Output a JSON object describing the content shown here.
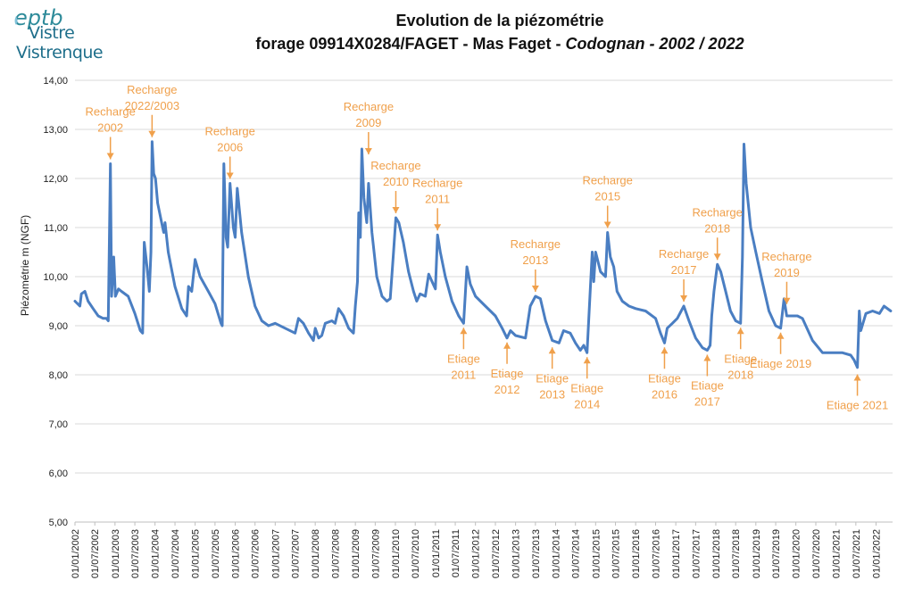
{
  "logo": {
    "mark_text": "eptb",
    "line1": "Vistre",
    "line2": "Vistrenque"
  },
  "title": {
    "line1": "Evolution de la piézométrie",
    "line2_part1": "forage 09914X0284/FAGET - Mas Faget - ",
    "line2_italic": "Codognan - 2002 / 2022"
  },
  "colors": {
    "series": "#4a7ec2",
    "annotation": "#f0a04b",
    "grid": "#d9d9d9",
    "axis_text": "#222222"
  },
  "chart_data": {
    "type": "line",
    "title": "Evolution de la piézométrie forage 09914X0284/FAGET - Mas Faget - Codognan - 2002 / 2022",
    "xlabel": "",
    "ylabel": "Piézométrie m (NGF)",
    "ylim": [
      5,
      14
    ],
    "yticks": [
      "5,00",
      "6,00",
      "7,00",
      "8,00",
      "9,00",
      "10,00",
      "11,00",
      "12,00",
      "13,00",
      "14,00"
    ],
    "xlim": [
      "2002-01-01",
      "2022-06-01"
    ],
    "xticks": [
      "01/01/2002",
      "01/07/2002",
      "01/01/2003",
      "01/07/2003",
      "01/01/2004",
      "01/07/2004",
      "01/01/2005",
      "01/07/2005",
      "01/01/2006",
      "01/07/2006",
      "01/01/2007",
      "01/07/2007",
      "01/01/2008",
      "01/07/2008",
      "01/01/2009",
      "01/07/2009",
      "01/01/2010",
      "01/07/2010",
      "01/01/2011",
      "01/07/2011",
      "01/01/2012",
      "01/07/2012",
      "01/01/2013",
      "01/07/2013",
      "01/01/2014",
      "01/07/2014",
      "01/01/2015",
      "01/07/2015",
      "01/01/2016",
      "01/07/2016",
      "01/01/2017",
      "01/07/2017",
      "01/01/2018",
      "01/07/2018",
      "01/01/2019",
      "01/07/2019",
      "01/01/2020",
      "01/07/2020",
      "01/01/2021",
      "01/07/2021",
      "01/01/2022"
    ],
    "grid": true,
    "legend": "none",
    "series": [
      {
        "points": [
          [
            "2002-01-01",
            9.5
          ],
          [
            "2002-02-15",
            9.4
          ],
          [
            "2002-03-01",
            9.65
          ],
          [
            "2002-04-01",
            9.7
          ],
          [
            "2002-05-01",
            9.5
          ],
          [
            "2002-06-15",
            9.35
          ],
          [
            "2002-08-01",
            9.2
          ],
          [
            "2002-09-15",
            9.15
          ],
          [
            "2002-10-15",
            9.15
          ],
          [
            "2002-11-01",
            9.1
          ],
          [
            "2002-11-20",
            12.3
          ],
          [
            "2002-12-01",
            9.6
          ],
          [
            "2002-12-20",
            10.4
          ],
          [
            "2003-01-05",
            9.6
          ],
          [
            "2003-02-01",
            9.75
          ],
          [
            "2003-03-01",
            9.7
          ],
          [
            "2003-05-01",
            9.6
          ],
          [
            "2003-07-01",
            9.25
          ],
          [
            "2003-08-20",
            8.9
          ],
          [
            "2003-09-10",
            8.85
          ],
          [
            "2003-09-25",
            10.7
          ],
          [
            "2003-10-20",
            10.2
          ],
          [
            "2003-11-10",
            9.7
          ],
          [
            "2003-11-25",
            10.5
          ],
          [
            "2003-12-05",
            12.75
          ],
          [
            "2003-12-20",
            12.1
          ],
          [
            "2004-01-05",
            12.0
          ],
          [
            "2004-01-25",
            11.5
          ],
          [
            "2004-03-01",
            11.1
          ],
          [
            "2004-03-20",
            10.9
          ],
          [
            "2004-04-01",
            11.1
          ],
          [
            "2004-05-01",
            10.5
          ],
          [
            "2004-07-01",
            9.8
          ],
          [
            "2004-09-01",
            9.35
          ],
          [
            "2004-10-15",
            9.2
          ],
          [
            "2004-11-01",
            9.8
          ],
          [
            "2004-12-01",
            9.7
          ],
          [
            "2005-01-01",
            10.35
          ],
          [
            "2005-02-15",
            10.0
          ],
          [
            "2005-05-01",
            9.7
          ],
          [
            "2005-07-01",
            9.45
          ],
          [
            "2005-08-25",
            9.05
          ],
          [
            "2005-09-05",
            9.0
          ],
          [
            "2005-09-20",
            12.3
          ],
          [
            "2005-10-10",
            10.8
          ],
          [
            "2005-10-25",
            10.6
          ],
          [
            "2005-11-15",
            11.9
          ],
          [
            "2005-12-15",
            11.0
          ],
          [
            "2006-01-01",
            10.8
          ],
          [
            "2006-01-20",
            11.8
          ],
          [
            "2006-03-01",
            10.9
          ],
          [
            "2006-05-01",
            10.0
          ],
          [
            "2006-07-01",
            9.4
          ],
          [
            "2006-09-01",
            9.1
          ],
          [
            "2006-11-01",
            9.0
          ],
          [
            "2007-01-01",
            9.05
          ],
          [
            "2007-04-01",
            8.95
          ],
          [
            "2007-07-01",
            8.85
          ],
          [
            "2007-08-01",
            9.15
          ],
          [
            "2007-09-15",
            9.05
          ],
          [
            "2007-11-01",
            8.85
          ],
          [
            "2007-12-15",
            8.7
          ],
          [
            "2008-01-01",
            8.95
          ],
          [
            "2008-02-01",
            8.75
          ],
          [
            "2008-03-01",
            8.8
          ],
          [
            "2008-04-01",
            9.05
          ],
          [
            "2008-06-01",
            9.1
          ],
          [
            "2008-07-01",
            9.05
          ],
          [
            "2008-08-01",
            9.35
          ],
          [
            "2008-09-15",
            9.2
          ],
          [
            "2008-11-01",
            8.95
          ],
          [
            "2008-12-15",
            8.85
          ],
          [
            "2009-01-01",
            9.4
          ],
          [
            "2009-01-20",
            9.9
          ],
          [
            "2009-02-01",
            11.3
          ],
          [
            "2009-02-15",
            10.8
          ],
          [
            "2009-03-01",
            12.6
          ],
          [
            "2009-03-20",
            11.6
          ],
          [
            "2009-04-15",
            11.1
          ],
          [
            "2009-05-01",
            11.9
          ],
          [
            "2009-06-01",
            10.9
          ],
          [
            "2009-07-15",
            10.0
          ],
          [
            "2009-09-01",
            9.6
          ],
          [
            "2009-10-15",
            9.5
          ],
          [
            "2009-11-15",
            9.55
          ],
          [
            "2009-12-15",
            10.5
          ],
          [
            "2010-01-05",
            11.2
          ],
          [
            "2010-02-01",
            11.1
          ],
          [
            "2010-03-15",
            10.7
          ],
          [
            "2010-05-01",
            10.1
          ],
          [
            "2010-06-15",
            9.7
          ],
          [
            "2010-07-15",
            9.5
          ],
          [
            "2010-08-15",
            9.65
          ],
          [
            "2010-10-01",
            9.6
          ],
          [
            "2010-11-01",
            10.05
          ],
          [
            "2010-12-01",
            9.9
          ],
          [
            "2011-01-01",
            9.75
          ],
          [
            "2011-01-20",
            10.85
          ],
          [
            "2011-02-15",
            10.5
          ],
          [
            "2011-04-01",
            10.0
          ],
          [
            "2011-06-01",
            9.5
          ],
          [
            "2011-08-01",
            9.2
          ],
          [
            "2011-09-15",
            9.05
          ],
          [
            "2011-10-15",
            10.2
          ],
          [
            "2011-11-15",
            9.85
          ],
          [
            "2012-01-01",
            9.6
          ],
          [
            "2012-04-01",
            9.4
          ],
          [
            "2012-07-01",
            9.2
          ],
          [
            "2012-09-01",
            8.95
          ],
          [
            "2012-10-15",
            8.75
          ],
          [
            "2012-11-15",
            8.9
          ],
          [
            "2013-01-01",
            8.8
          ],
          [
            "2013-04-01",
            8.75
          ],
          [
            "2013-05-15",
            9.4
          ],
          [
            "2013-07-01",
            9.6
          ],
          [
            "2013-08-15",
            9.55
          ],
          [
            "2013-10-01",
            9.1
          ],
          [
            "2013-12-01",
            8.7
          ],
          [
            "2014-02-01",
            8.65
          ],
          [
            "2014-03-15",
            8.9
          ],
          [
            "2014-05-15",
            8.85
          ],
          [
            "2014-07-01",
            8.65
          ],
          [
            "2014-08-15",
            8.5
          ],
          [
            "2014-09-15",
            8.6
          ],
          [
            "2014-10-15",
            8.45
          ],
          [
            "2014-11-15",
            9.8
          ],
          [
            "2014-12-01",
            10.5
          ],
          [
            "2014-12-15",
            9.9
          ],
          [
            "2015-01-01",
            10.5
          ],
          [
            "2015-02-15",
            10.1
          ],
          [
            "2015-04-01",
            10.0
          ],
          [
            "2015-04-20",
            10.9
          ],
          [
            "2015-05-15",
            10.4
          ],
          [
            "2015-06-15",
            10.2
          ],
          [
            "2015-07-15",
            9.7
          ],
          [
            "2015-09-01",
            9.5
          ],
          [
            "2015-11-01",
            9.4
          ],
          [
            "2016-01-01",
            9.35
          ],
          [
            "2016-04-01",
            9.3
          ],
          [
            "2016-07-01",
            9.15
          ],
          [
            "2016-08-15",
            8.85
          ],
          [
            "2016-09-20",
            8.65
          ],
          [
            "2016-10-15",
            8.95
          ],
          [
            "2016-12-01",
            9.05
          ],
          [
            "2017-01-15",
            9.15
          ],
          [
            "2017-03-15",
            9.4
          ],
          [
            "2017-05-01",
            9.1
          ],
          [
            "2017-07-01",
            8.75
          ],
          [
            "2017-09-01",
            8.55
          ],
          [
            "2017-10-15",
            8.5
          ],
          [
            "2017-11-10",
            8.6
          ],
          [
            "2017-11-25",
            9.2
          ],
          [
            "2017-12-15",
            9.7
          ],
          [
            "2018-01-15",
            10.25
          ],
          [
            "2018-02-15",
            10.1
          ],
          [
            "2018-04-01",
            9.7
          ],
          [
            "2018-05-15",
            9.3
          ],
          [
            "2018-07-01",
            9.1
          ],
          [
            "2018-08-15",
            9.05
          ],
          [
            "2018-09-01",
            10.4
          ],
          [
            "2018-09-15",
            12.7
          ],
          [
            "2018-10-05",
            11.9
          ],
          [
            "2018-11-15",
            11.0
          ],
          [
            "2019-01-01",
            10.5
          ],
          [
            "2019-03-01",
            9.9
          ],
          [
            "2019-05-01",
            9.3
          ],
          [
            "2019-07-01",
            9.0
          ],
          [
            "2019-08-15",
            8.95
          ],
          [
            "2019-09-15",
            9.55
          ],
          [
            "2019-10-10",
            9.2
          ],
          [
            "2019-11-15",
            9.2
          ],
          [
            "2020-01-15",
            9.2
          ],
          [
            "2020-03-01",
            9.15
          ],
          [
            "2020-06-01",
            8.7
          ],
          [
            "2020-09-01",
            8.45
          ],
          [
            "2020-12-01",
            8.45
          ],
          [
            "2021-03-01",
            8.45
          ],
          [
            "2021-05-15",
            8.4
          ],
          [
            "2021-06-15",
            8.3
          ],
          [
            "2021-07-15",
            8.15
          ],
          [
            "2021-08-01",
            9.3
          ],
          [
            "2021-08-15",
            8.9
          ],
          [
            "2021-10-01",
            9.25
          ],
          [
            "2021-12-01",
            9.3
          ],
          [
            "2022-02-01",
            9.25
          ],
          [
            "2022-03-15",
            9.4
          ],
          [
            "2022-05-15",
            9.3
          ]
        ]
      }
    ],
    "annotations": [
      {
        "lines": [
          "Recharge",
          "2002"
        ],
        "target": [
          "2002-11-20",
          12.3
        ],
        "anchor": "top"
      },
      {
        "lines": [
          "Recharge",
          "2022/2003"
        ],
        "target": [
          "2003-12-05",
          12.75
        ],
        "anchor": "top"
      },
      {
        "lines": [
          "Recharge",
          "2006"
        ],
        "target": [
          "2005-11-15",
          11.9
        ],
        "anchor": "top"
      },
      {
        "lines": [
          "Recharge",
          "2009"
        ],
        "target": [
          "2009-05-01",
          12.4
        ],
        "anchor": "top"
      },
      {
        "lines": [
          "Recharge",
          "2010"
        ],
        "target": [
          "2010-01-05",
          11.2
        ],
        "anchor": "top"
      },
      {
        "lines": [
          "Recharge",
          "2011"
        ],
        "target": [
          "2011-01-20",
          10.85
        ],
        "anchor": "top"
      },
      {
        "lines": [
          "Recharge",
          "2013"
        ],
        "target": [
          "2013-07-01",
          9.6
        ],
        "anchor": "top"
      },
      {
        "lines": [
          "Recharge",
          "2015"
        ],
        "target": [
          "2015-04-20",
          10.9
        ],
        "anchor": "top"
      },
      {
        "lines": [
          "Recharge",
          "2017"
        ],
        "target": [
          "2017-03-15",
          9.4
        ],
        "anchor": "top"
      },
      {
        "lines": [
          "Recharge",
          "2018"
        ],
        "target": [
          "2018-01-15",
          10.25
        ],
        "anchor": "top"
      },
      {
        "lines": [
          "Recharge",
          "2019"
        ],
        "target": [
          "2019-10-10",
          9.35
        ],
        "anchor": "top"
      },
      {
        "lines": [
          "Etiage",
          "2011"
        ],
        "target": [
          "2011-09-15",
          9.05
        ],
        "anchor": "bottom"
      },
      {
        "lines": [
          "Etiage",
          "2012"
        ],
        "target": [
          "2012-10-15",
          8.75
        ],
        "anchor": "bottom"
      },
      {
        "lines": [
          "Etiage",
          "2013"
        ],
        "target": [
          "2013-12-01",
          8.65
        ],
        "anchor": "bottom"
      },
      {
        "lines": [
          "Etiage",
          "2014"
        ],
        "target": [
          "2014-10-15",
          8.45
        ],
        "anchor": "bottom"
      },
      {
        "lines": [
          "Etiage",
          "2016"
        ],
        "target": [
          "2016-09-20",
          8.65
        ],
        "anchor": "bottom"
      },
      {
        "lines": [
          "Etiage",
          "2017"
        ],
        "target": [
          "2017-10-15",
          8.5
        ],
        "anchor": "bottom"
      },
      {
        "lines": [
          "Etiage",
          "2018"
        ],
        "target": [
          "2018-08-15",
          9.05
        ],
        "anchor": "bottom"
      },
      {
        "lines": [
          "Etiage 2019"
        ],
        "target": [
          "2019-08-15",
          8.95
        ],
        "anchor": "bottom"
      },
      {
        "lines": [
          "Etiage 2021"
        ],
        "target": [
          "2021-07-15",
          8.1
        ],
        "anchor": "bottom"
      }
    ]
  }
}
